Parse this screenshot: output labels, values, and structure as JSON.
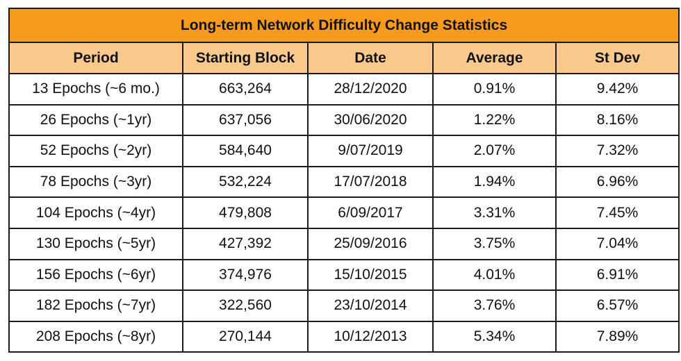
{
  "title": "Long-term Network Difficulty Change Statistics",
  "headers": [
    "Period",
    "Starting Block",
    "Date",
    "Average",
    "St Dev"
  ],
  "rows": [
    [
      "13 Epochs (~6 mo.)",
      "663,264",
      "28/12/2020",
      "0.91%",
      "9.42%"
    ],
    [
      "26 Epochs (~1yr)",
      "637,056",
      "30/06/2020",
      "1.22%",
      "8.16%"
    ],
    [
      "52 Epochs (~2yr)",
      "584,640",
      "9/07/2019",
      "2.07%",
      "7.32%"
    ],
    [
      "78 Epochs (~3yr)",
      "532,224",
      "17/07/2018",
      "1.94%",
      "6.96%"
    ],
    [
      "104 Epochs (~4yr)",
      "479,808",
      "6/09/2017",
      "3.31%",
      "7.45%"
    ],
    [
      "130 Epochs (~5yr)",
      "427,392",
      "25/09/2016",
      "3.75%",
      "7.04%"
    ],
    [
      "156 Epochs (~6yr)",
      "374,976",
      "15/10/2015",
      "4.01%",
      "6.91%"
    ],
    [
      "182 Epochs (~7yr)",
      "322,560",
      "23/10/2014",
      "3.76%",
      "6.57%"
    ],
    [
      "208 Epochs (~8yr)",
      "270,144",
      "10/12/2013",
      "5.34%",
      "7.89%"
    ]
  ],
  "colors": {
    "title_bg": "#f79a1e",
    "header_bg": "#fbc98c",
    "border": "#1a1a1a"
  }
}
